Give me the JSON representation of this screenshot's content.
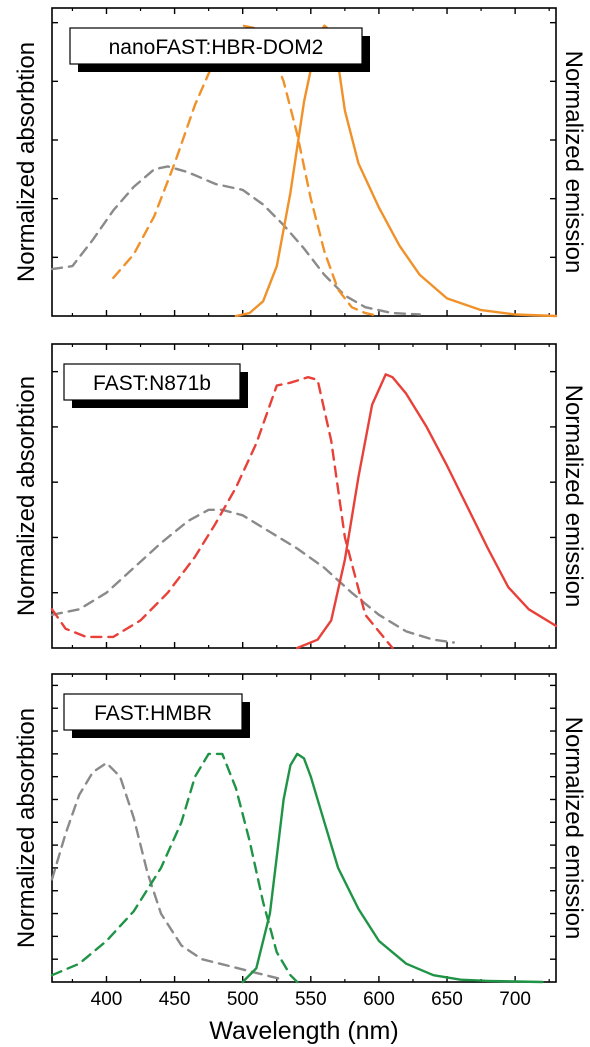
{
  "chart_data": {
    "type": "line",
    "xlabel": "Wavelength (nm)",
    "xlim": [
      360,
      730
    ],
    "xticks": [
      400,
      450,
      500,
      550,
      600,
      650,
      700
    ],
    "panels": [
      {
        "label": "nanoFAST:HBR-DOM2",
        "ylabel_left": "Normalized absorbtion",
        "ylabel_right": "Normalized emission",
        "ylim": [
          0,
          1.05
        ],
        "yticks": [
          0.2,
          0.4,
          0.6,
          0.8,
          1.0
        ],
        "accent": "#f0912a",
        "series": [
          {
            "role": "absorption-gray",
            "color": "#8a8a8a",
            "dash": true,
            "x": [
              360,
              375,
              390,
              405,
              420,
              435,
              445,
              460,
              480,
              500,
              515,
              530,
              545,
              560,
              575,
              590,
              610,
              630
            ],
            "y": [
              0.16,
              0.17,
              0.26,
              0.36,
              0.44,
              0.5,
              0.51,
              0.49,
              0.45,
              0.43,
              0.38,
              0.31,
              0.23,
              0.14,
              0.07,
              0.03,
              0.01,
              0.005
            ]
          },
          {
            "role": "absorption-colored",
            "color": "#f0912a",
            "dash": true,
            "x": [
              405,
              420,
              435,
              450,
              465,
              480,
              490,
              500,
              510,
              520,
              530,
              540,
              550,
              560,
              570,
              580,
              590,
              600
            ],
            "y": [
              0.13,
              0.21,
              0.34,
              0.52,
              0.72,
              0.88,
              0.96,
              0.99,
              0.98,
              0.92,
              0.8,
              0.62,
              0.4,
              0.22,
              0.09,
              0.03,
              0.01,
              0.0
            ]
          },
          {
            "role": "emission",
            "color": "#f0912a",
            "dash": false,
            "x": [
              495,
              505,
              515,
              525,
              535,
              545,
              555,
              560,
              565,
              570,
              575,
              585,
              600,
              615,
              630,
              650,
              675,
              700,
              730
            ],
            "y": [
              0.0,
              0.01,
              0.05,
              0.17,
              0.42,
              0.73,
              0.95,
              0.99,
              0.97,
              0.86,
              0.7,
              0.52,
              0.37,
              0.24,
              0.14,
              0.06,
              0.02,
              0.005,
              0.0
            ]
          }
        ]
      },
      {
        "label": "FAST:N871b",
        "ylabel_left": "Normalized absorbtion",
        "ylabel_right": "Normalized emission",
        "ylim": [
          0,
          1.1
        ],
        "yticks": [
          0.2,
          0.4,
          0.6,
          0.8,
          1.0
        ],
        "accent": "#e8413a",
        "series": [
          {
            "role": "absorption-gray",
            "color": "#8a8a8a",
            "dash": true,
            "x": [
              360,
              380,
              400,
              420,
              440,
              460,
              475,
              485,
              500,
              520,
              540,
              560,
              580,
              600,
              620,
              640,
              655
            ],
            "y": [
              0.12,
              0.14,
              0.2,
              0.29,
              0.38,
              0.46,
              0.5,
              0.5,
              0.48,
              0.42,
              0.36,
              0.29,
              0.2,
              0.12,
              0.06,
              0.03,
              0.02
            ]
          },
          {
            "role": "absorption-colored",
            "color": "#e8413a",
            "dash": true,
            "x": [
              360,
              370,
              385,
              405,
              425,
              445,
              465,
              480,
              495,
              510,
              525,
              535,
              548,
              555,
              565,
              575,
              590,
              610
            ],
            "y": [
              0.14,
              0.07,
              0.04,
              0.04,
              0.1,
              0.2,
              0.33,
              0.45,
              0.58,
              0.74,
              0.95,
              0.96,
              0.98,
              0.97,
              0.75,
              0.4,
              0.12,
              0.0
            ]
          },
          {
            "role": "emission",
            "color": "#e8413a",
            "dash": false,
            "x": [
              540,
              555,
              565,
              575,
              585,
              595,
              605,
              610,
              620,
              635,
              650,
              665,
              680,
              695,
              710,
              730
            ],
            "y": [
              0.0,
              0.03,
              0.1,
              0.32,
              0.62,
              0.88,
              0.99,
              0.98,
              0.92,
              0.8,
              0.66,
              0.51,
              0.36,
              0.22,
              0.14,
              0.08
            ]
          }
        ]
      },
      {
        "label": "FAST:HMBR",
        "ylabel_left": "Normalized absorbtion",
        "ylabel_right": "Normalized emission",
        "ylim": [
          0,
          1.35
        ],
        "yticks": [
          0.1,
          0.2,
          0.3,
          0.4,
          0.5,
          0.6,
          0.7,
          0.8,
          0.9,
          1.0,
          1.1,
          1.2,
          1.3
        ],
        "accent": "#1f9446",
        "series": [
          {
            "role": "absorption-gray",
            "color": "#8a8a8a",
            "dash": true,
            "x": [
              360,
              370,
              380,
              390,
              400,
              410,
              420,
              430,
              440,
              455,
              470,
              490,
              510,
              530
            ],
            "y": [
              0.45,
              0.65,
              0.82,
              0.92,
              0.96,
              0.9,
              0.72,
              0.48,
              0.3,
              0.16,
              0.1,
              0.07,
              0.04,
              0.01
            ]
          },
          {
            "role": "absorption-colored",
            "color": "#1f9446",
            "dash": true,
            "x": [
              360,
              380,
              400,
              420,
              440,
              455,
              465,
              475,
              485,
              495,
              505,
              515,
              525,
              535,
              540
            ],
            "y": [
              0.03,
              0.08,
              0.18,
              0.31,
              0.5,
              0.7,
              0.9,
              1.0,
              1.0,
              0.85,
              0.62,
              0.35,
              0.13,
              0.03,
              0.0
            ]
          },
          {
            "role": "emission",
            "color": "#1f9446",
            "dash": false,
            "x": [
              500,
              510,
              520,
              525,
              530,
              535,
              540,
              545,
              550,
              560,
              570,
              585,
              600,
              620,
              640,
              660,
              680,
              700,
              720
            ],
            "y": [
              0.0,
              0.06,
              0.3,
              0.55,
              0.8,
              0.95,
              1.0,
              0.98,
              0.9,
              0.7,
              0.5,
              0.32,
              0.18,
              0.08,
              0.03,
              0.01,
              0.005,
              0.002,
              0.0
            ]
          }
        ]
      }
    ]
  }
}
